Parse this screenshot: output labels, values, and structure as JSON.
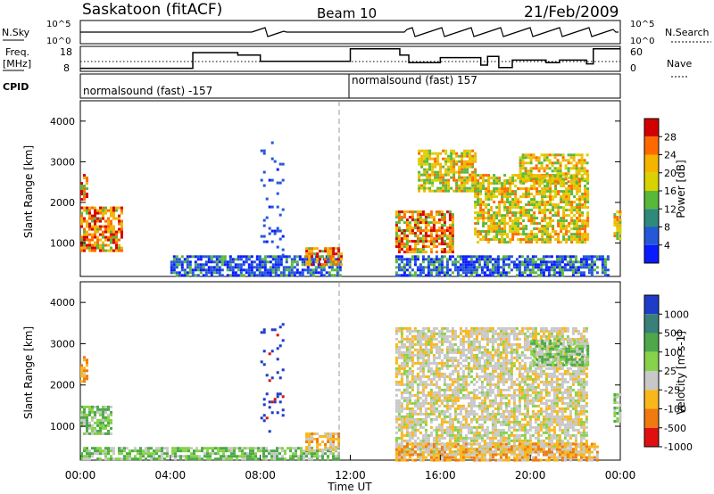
{
  "header": {
    "station": "Saskatoon (fitACF)",
    "beam": "Beam 10",
    "date": "21/Feb/2009"
  },
  "status_panels": {
    "nsky_label": "N.Sky",
    "nsky_ticks": [
      "10^5",
      "10^0"
    ],
    "nsearch_label": "N.Search",
    "nsearch_ticks": [
      "10^5",
      "10^0"
    ],
    "freq_label_line1": "Freq.",
    "freq_label_line2": "[MHz]",
    "freq_ticks": [
      "18",
      "8"
    ],
    "nave_label": "Nave",
    "nave_ticks": [
      "60",
      "0"
    ],
    "cpid_label": "CPID",
    "cpid_segments": [
      {
        "label": "normalsound (fast) -157",
        "start_hour": 0.0
      },
      {
        "label": "normalsound (fast) 157",
        "start_hour": 11.9
      }
    ],
    "freq_steps_mhz": [
      [
        0,
        9.2
      ],
      [
        5.0,
        15.5
      ],
      [
        7.0,
        14.5
      ],
      [
        8.0,
        12.0
      ],
      [
        11.5,
        12.0
      ],
      [
        12.0,
        17.0
      ],
      [
        14.2,
        14.5
      ],
      [
        14.6,
        11.5
      ],
      [
        16.0,
        13.5
      ],
      [
        17.3,
        13.5
      ],
      [
        17.8,
        10.5
      ],
      [
        18.1,
        14.0
      ],
      [
        18.6,
        9.5
      ],
      [
        19.2,
        12.5
      ],
      [
        20.7,
        11.5
      ],
      [
        21.3,
        12.5
      ],
      [
        22.5,
        11.0
      ],
      [
        22.8,
        17.0
      ],
      [
        24,
        17.0
      ]
    ]
  },
  "chart_data": [
    {
      "type": "heatmap",
      "name": "power",
      "ylabel": "Slant Range [km]",
      "yticks": [
        "4000",
        "3000",
        "2000",
        "1000"
      ],
      "ylim": [
        180,
        4500
      ],
      "colorbar_title": "Power [dB]",
      "colorbar_ticks": [
        "28",
        "24",
        "20",
        "16",
        "12",
        "8",
        "4"
      ],
      "colorbar_colors": [
        "#d40000",
        "#ff6a00",
        "#f4b400",
        "#d8d200",
        "#58b83c",
        "#2e8a7a",
        "#2458d8",
        "#0b1bff"
      ],
      "xlim_hours": [
        0,
        24
      ],
      "regions": [
        {
          "x": [
            0.0,
            1.8
          ],
          "y": [
            800,
            1900
          ],
          "level": "strong"
        },
        {
          "x": [
            0.0,
            0.3
          ],
          "y": [
            2100,
            2700
          ],
          "level": "strong"
        },
        {
          "x": [
            4.0,
            11.5
          ],
          "y": [
            180,
            700
          ],
          "level": "weak"
        },
        {
          "x": [
            10.0,
            11.6
          ],
          "y": [
            500,
            900
          ],
          "level": "strong"
        },
        {
          "x": [
            8.0,
            9.0
          ],
          "y": [
            700,
            3500
          ],
          "level": "sparse"
        },
        {
          "x": [
            14.0,
            23.5
          ],
          "y": [
            180,
            700
          ],
          "level": "weak"
        },
        {
          "x": [
            14.0,
            16.5
          ],
          "y": [
            800,
            1800
          ],
          "level": "strong"
        },
        {
          "x": [
            15.0,
            17.5
          ],
          "y": [
            2300,
            3300
          ],
          "level": "medium"
        },
        {
          "x": [
            17.5,
            22.5
          ],
          "y": [
            1000,
            2700
          ],
          "level": "medium"
        },
        {
          "x": [
            19.5,
            22.5
          ],
          "y": [
            2500,
            3200
          ],
          "level": "medium"
        },
        {
          "x": [
            23.7,
            24.0
          ],
          "y": [
            1100,
            1800
          ],
          "level": "medium"
        }
      ]
    },
    {
      "type": "heatmap",
      "name": "velocity",
      "ylabel": "Slant Range [km]",
      "yticks": [
        "4000",
        "3000",
        "2000",
        "1000"
      ],
      "ylim": [
        180,
        4500
      ],
      "xlabel": "Time UT",
      "xticks": [
        "00:00",
        "04:00",
        "08:00",
        "12:00",
        "16:00",
        "20:00",
        "00:00"
      ],
      "colorbar_title": "Velocity [m s-1]",
      "colorbar_ticks": [
        "1000",
        "500",
        "100",
        "25",
        "-25",
        "-100",
        "-500",
        "-1000"
      ],
      "colorbar_colors": [
        "#1d3cc8",
        "#3a7f7a",
        "#4ea84a",
        "#86d24a",
        "#c8c8c8",
        "#f8b81c",
        "#f07a10",
        "#e01010"
      ],
      "xlim_hours": [
        0,
        24
      ],
      "regions": [
        {
          "x": [
            0.0,
            1.4
          ],
          "y": [
            800,
            1500
          ],
          "level": "green"
        },
        {
          "x": [
            0.0,
            0.3
          ],
          "y": [
            2100,
            2700
          ],
          "level": "orange"
        },
        {
          "x": [
            0.0,
            11.5
          ],
          "y": [
            180,
            500
          ],
          "level": "green"
        },
        {
          "x": [
            10.0,
            11.5
          ],
          "y": [
            450,
            850
          ],
          "level": "orange"
        },
        {
          "x": [
            8.0,
            9.0
          ],
          "y": [
            700,
            3500
          ],
          "level": "sparse"
        },
        {
          "x": [
            14.0,
            22.5
          ],
          "y": [
            300,
            3400
          ],
          "level": "gray"
        },
        {
          "x": [
            14.0,
            23.0
          ],
          "y": [
            180,
            600
          ],
          "level": "orange"
        },
        {
          "x": [
            20.0,
            22.5
          ],
          "y": [
            2500,
            3100
          ],
          "level": "green"
        },
        {
          "x": [
            23.7,
            24.0
          ],
          "y": [
            1100,
            1800
          ],
          "level": "green"
        }
      ]
    }
  ]
}
